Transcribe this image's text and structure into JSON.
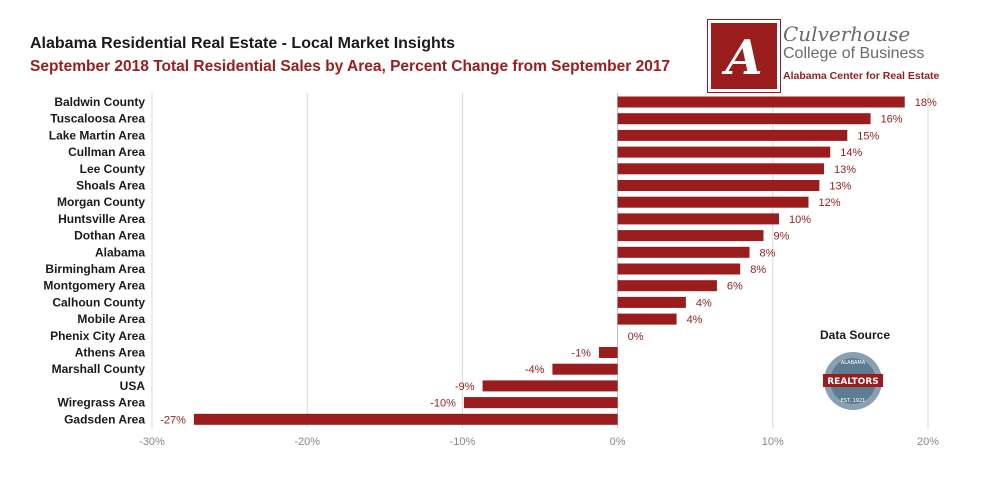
{
  "header": {
    "title": "Alabama Residential Real Estate - Local Market Insights",
    "subtitle": "September 2018 Total Residential Sales by Area, Percent Change from September 2017"
  },
  "branding": {
    "logo_letter": "A",
    "name": "Culverhouse",
    "subname": "College of Business",
    "center": "Alabama Center for Real Estate"
  },
  "source": {
    "label": "Data Source",
    "seal_text": "REALTORS",
    "seal_top_text": "ALABAMA",
    "seal_bottom_text": "EST. 1921"
  },
  "colors": {
    "bar": "#9b1c1c",
    "grid": "#d9d9d9",
    "tick_text": "#888888"
  },
  "chart_data": {
    "type": "bar",
    "orientation": "horizontal",
    "title": "September 2018 Total Residential Sales by Area, Percent Change from September 2017",
    "xlabel": "",
    "ylabel": "",
    "xlim": [
      -30,
      20
    ],
    "xticks": [
      -30,
      -20,
      -10,
      0,
      10,
      20
    ],
    "xtick_labels": [
      "-30%",
      "-20%",
      "-10%",
      "0%",
      "10%",
      "20%"
    ],
    "categories": [
      "Baldwin County",
      "Tuscaloosa Area",
      "Lake Martin Area",
      "Cullman Area",
      "Lee County",
      "Shoals Area",
      "Morgan County",
      "Huntsville Area",
      "Dothan Area",
      "Alabama",
      "Birmingham Area",
      "Montgomery Area",
      "Calhoun County",
      "Mobile Area",
      "Phenix City Area",
      "Athens Area",
      "Marshall County",
      "USA",
      "Wiregrass Area",
      "Gadsden Area"
    ],
    "values": [
      18.5,
      16.3,
      14.8,
      13.7,
      13.3,
      13.0,
      12.3,
      10.4,
      9.4,
      8.5,
      7.9,
      6.4,
      4.4,
      3.8,
      0,
      -1.2,
      -4.2,
      -8.7,
      -9.9,
      -27.3
    ],
    "value_labels": [
      "18%",
      "16%",
      "15%",
      "14%",
      "13%",
      "13%",
      "12%",
      "10%",
      "9%",
      "8%",
      "8%",
      "6%",
      "4%",
      "4%",
      "0%",
      "-1%",
      "-4%",
      "-9%",
      "-10%",
      "-27%"
    ],
    "grid": true
  }
}
